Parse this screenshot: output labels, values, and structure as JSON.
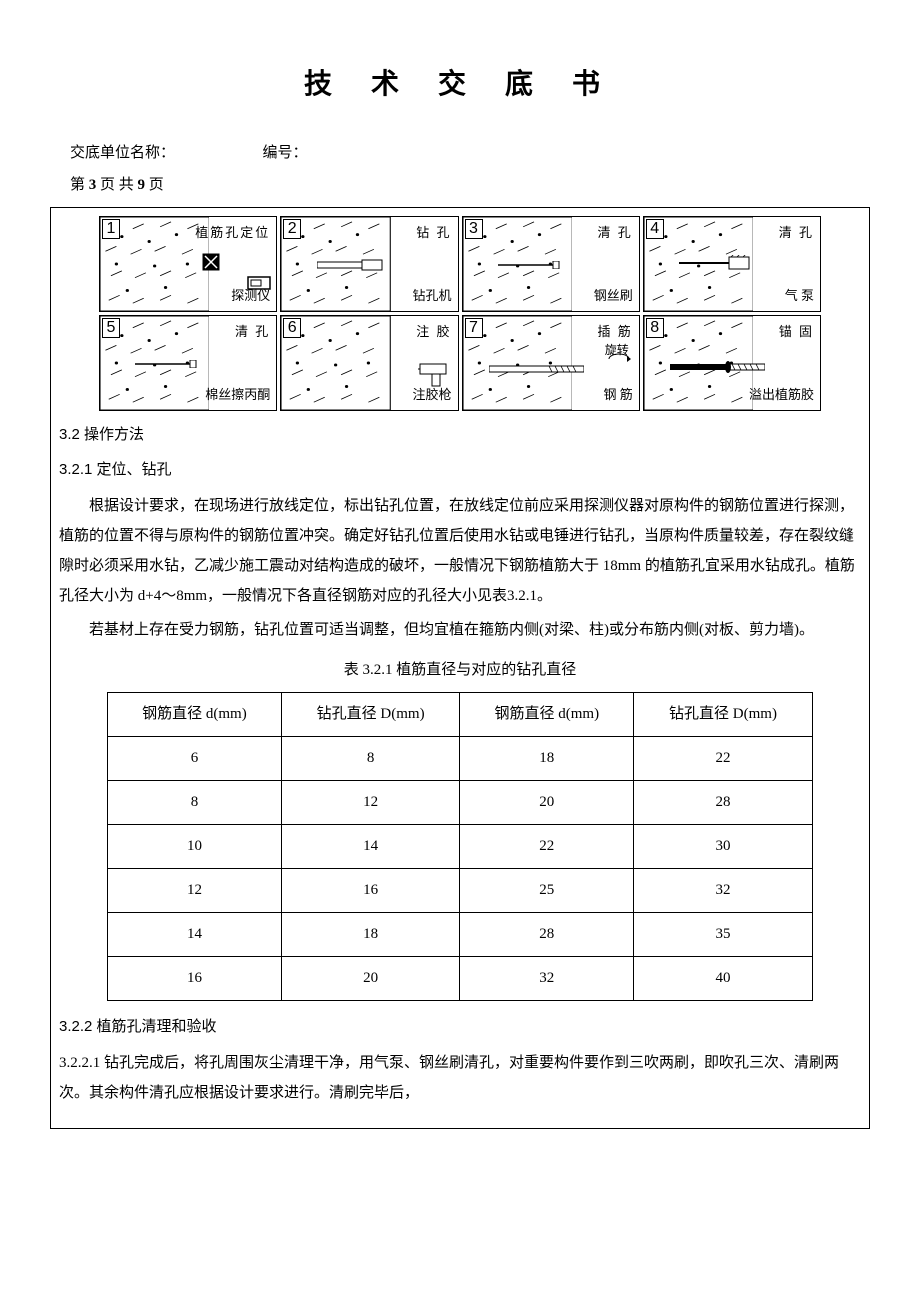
{
  "title": "技 术 交 底 书",
  "header": {
    "unit_label": "交底单位名称：",
    "number_label": "编号：",
    "page_prefix": "第 ",
    "page_current": "3",
    "page_mid": " 页 共 ",
    "page_total": "9",
    "page_suffix": " 页"
  },
  "diagrams": [
    {
      "num": "1",
      "top": "植筋孔定位",
      "bottom": "探测仪"
    },
    {
      "num": "2",
      "top": "钻  孔",
      "bottom": "钻孔机"
    },
    {
      "num": "3",
      "top": "清  孔",
      "bottom": "钢丝刷"
    },
    {
      "num": "4",
      "top": "清  孔",
      "bottom": "气 泵"
    },
    {
      "num": "5",
      "top": "清  孔",
      "bottom": "棉丝擦丙酮"
    },
    {
      "num": "6",
      "top": "注  胶",
      "bottom": "注胶枪"
    },
    {
      "num": "7",
      "top": "插  筋",
      "bottom": "钢 筋",
      "extra": "旋转"
    },
    {
      "num": "8",
      "top": "锚  固",
      "bottom": "溢出植筋胶"
    }
  ],
  "sections": {
    "s32": "3.2  操作方法",
    "s321": "3.2.1  定位、钻孔",
    "p1": "根据设计要求，在现场进行放线定位，标出钻孔位置，在放线定位前应采用探测仪器对原构件的钢筋位置进行探测，植筋的位置不得与原构件的钢筋位置冲突。确定好钻孔位置后使用水钻或电锤进行钻孔，当原构件质量较差，存在裂纹缝隙时必须采用水钻，乙减少施工震动对结构造成的破坏，一般情况下钢筋植筋大于 18mm 的植筋孔宜采用水钻成孔。植筋孔径大小为 d+4～8mm，一般情况下各直径钢筋对应的孔径大小见表3.2.1。",
    "p2": "若基材上存在受力钢筋，钻孔位置可适当调整，但均宜植在箍筋内侧(对梁、柱)或分布筋内侧(对板、剪力墙)。",
    "table_caption": "表 3.2.1 植筋直径与对应的钻孔直径",
    "s322": "3.2.2  植筋孔清理和验收",
    "s3221": "3.2.2.1  钻孔完成后，将孔周围灰尘清理干净，用气泵、钢丝刷清孔，对重要构件要作到三吹两刷，即吹孔三次、清刷两次。其余构件清孔应根据设计要求进行。清刷完毕后，"
  },
  "table": {
    "headers": [
      "钢筋直径 d(mm)",
      "钻孔直径 D(mm)",
      "钢筋直径 d(mm)",
      "钻孔直径 D(mm)"
    ],
    "rows": [
      [
        "6",
        "8",
        "18",
        "22"
      ],
      [
        "8",
        "12",
        "20",
        "28"
      ],
      [
        "10",
        "14",
        "22",
        "30"
      ],
      [
        "12",
        "16",
        "25",
        "32"
      ],
      [
        "14",
        "18",
        "28",
        "35"
      ],
      [
        "16",
        "20",
        "32",
        "40"
      ]
    ]
  }
}
